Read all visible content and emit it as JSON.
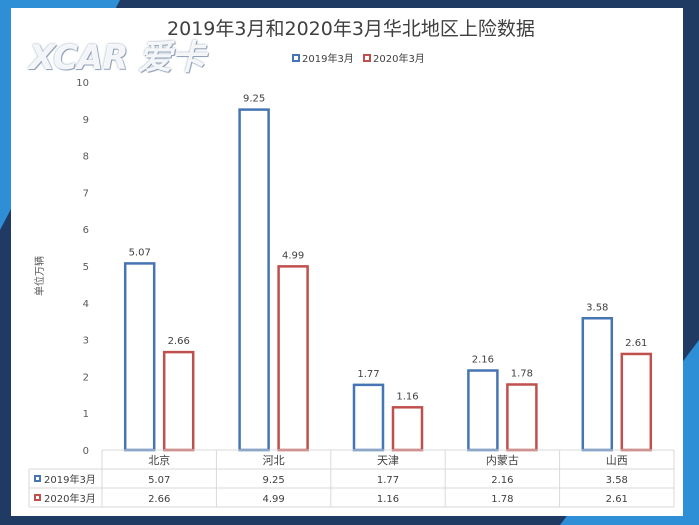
{
  "logo_text": "XCAR 爱卡",
  "chart_data": {
    "type": "bar",
    "title": "2019年3月和2020年3月华北地区上险数据",
    "ylabel": "单位万辆",
    "ylim": [
      0,
      10
    ],
    "yticks": [
      0,
      1,
      2,
      3,
      4,
      5,
      6,
      7,
      8,
      9,
      10
    ],
    "categories": [
      "北京",
      "河北",
      "天津",
      "内蒙古",
      "山西"
    ],
    "legend_position": "top-center",
    "grid": false,
    "series": [
      {
        "name": "2019年3月",
        "color": "#4575b4",
        "values": [
          5.07,
          9.25,
          1.77,
          2.16,
          3.58
        ]
      },
      {
        "name": "2020年3月",
        "color": "#c0504d",
        "values": [
          2.66,
          4.99,
          1.16,
          1.78,
          2.61
        ]
      }
    ],
    "data_table": true
  }
}
